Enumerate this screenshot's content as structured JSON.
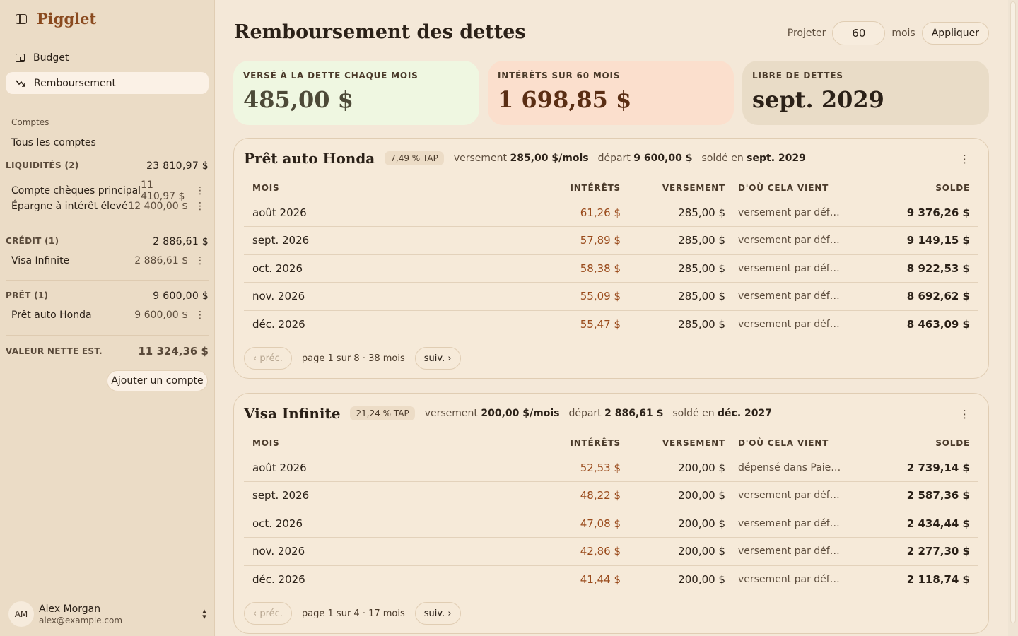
{
  "app": {
    "name": "Pigglet"
  },
  "nav": [
    {
      "label": "Budget",
      "icon": "budget-icon"
    },
    {
      "label": "Remboursement",
      "icon": "trend-down-icon",
      "active": true
    }
  ],
  "sidebar": {
    "accounts_label": "Comptes",
    "all_accounts": "Tous les comptes",
    "groups": {
      "liquid": {
        "label": "LIQUIDITÉS (2)",
        "total": "23 810,97 $",
        "accounts": [
          {
            "name": "Compte chèques principal",
            "amount": "11 410,97 $"
          },
          {
            "name": "Épargne à intérêt élevé",
            "amount": "12 400,00 $"
          }
        ]
      },
      "credit": {
        "label": "CRÉDIT (1)",
        "total": "2 886,61 $",
        "accounts": [
          {
            "name": "Visa Infinite",
            "amount": "2 886,61 $"
          }
        ]
      },
      "loan": {
        "label": "PRÊT (1)",
        "total": "9 600,00 $",
        "accounts": [
          {
            "name": "Prêt auto Honda",
            "amount": "9 600,00 $"
          }
        ]
      }
    },
    "networth_label": "VALEUR NETTE EST.",
    "networth_value": "11 324,36 $",
    "add_account": "Ajouter un compte"
  },
  "user": {
    "initials": "AM",
    "name": "Alex Morgan",
    "email": "alex@example.com"
  },
  "header": {
    "title": "Remboursement des dettes",
    "project_label": "Projeter",
    "months_value": "60",
    "months_label": "mois",
    "apply_label": "Appliquer"
  },
  "stats": [
    {
      "label": "VERSÉ À LA DETTE CHAQUE MOIS",
      "value": "485,00 $"
    },
    {
      "label": "INTÉRÊTS SUR 60 MOIS",
      "value": "1 698,85 $"
    },
    {
      "label": "LIBRE DE DETTES",
      "value": "sept. 2029"
    }
  ],
  "columns": {
    "mois": "MOIS",
    "interets": "INTÉRÊTS",
    "versement": "VERSEMENT",
    "source": "D'OÙ CELA VIENT",
    "solde": "SOLDE"
  },
  "debts": [
    {
      "name": "Prêt auto Honda",
      "apr": "7,49 % TAP",
      "payment_label": "versement",
      "payment": "285,00 $/mois",
      "start_label": "départ",
      "start": "9 600,00 $",
      "paid_label": "soldé en",
      "paid": "sept. 2029",
      "rows": [
        {
          "mois": "août 2026",
          "interets": "61,26 $",
          "versement": "285,00 $",
          "source": "versement par défaut",
          "solde": "9 376,26 $"
        },
        {
          "mois": "sept. 2026",
          "interets": "57,89 $",
          "versement": "285,00 $",
          "source": "versement par défaut",
          "solde": "9 149,15 $"
        },
        {
          "mois": "oct. 2026",
          "interets": "58,38 $",
          "versement": "285,00 $",
          "source": "versement par défaut",
          "solde": "8 922,53 $"
        },
        {
          "mois": "nov. 2026",
          "interets": "55,09 $",
          "versement": "285,00 $",
          "source": "versement par défaut",
          "solde": "8 692,62 $"
        },
        {
          "mois": "déc. 2026",
          "interets": "55,47 $",
          "versement": "285,00 $",
          "source": "versement par défaut",
          "solde": "8 463,09 $"
        }
      ],
      "pager": {
        "prev": "‹ préc.",
        "info": "page 1 sur 8 · 38 mois",
        "next": "suiv. ›"
      }
    },
    {
      "name": "Visa Infinite",
      "apr": "21,24 % TAP",
      "payment_label": "versement",
      "payment": "200,00 $/mois",
      "start_label": "départ",
      "start": "2 886,61 $",
      "paid_label": "soldé en",
      "paid": "déc. 2027",
      "rows": [
        {
          "mois": "août 2026",
          "interets": "52,53 $",
          "versement": "200,00 $",
          "source": "dépensé dans Paieme…",
          "solde": "2 739,14 $"
        },
        {
          "mois": "sept. 2026",
          "interets": "48,22 $",
          "versement": "200,00 $",
          "source": "versement par défaut",
          "solde": "2 587,36 $"
        },
        {
          "mois": "oct. 2026",
          "interets": "47,08 $",
          "versement": "200,00 $",
          "source": "versement par défaut",
          "solde": "2 434,44 $"
        },
        {
          "mois": "nov. 2026",
          "interets": "42,86 $",
          "versement": "200,00 $",
          "source": "versement par défaut",
          "solde": "2 277,30 $"
        },
        {
          "mois": "déc. 2026",
          "interets": "41,44 $",
          "versement": "200,00 $",
          "source": "versement par défaut",
          "solde": "2 118,74 $"
        }
      ],
      "pager": {
        "prev": "‹ préc.",
        "info": "page 1 sur 4 · 17 mois",
        "next": "suiv. ›"
      }
    }
  ]
}
